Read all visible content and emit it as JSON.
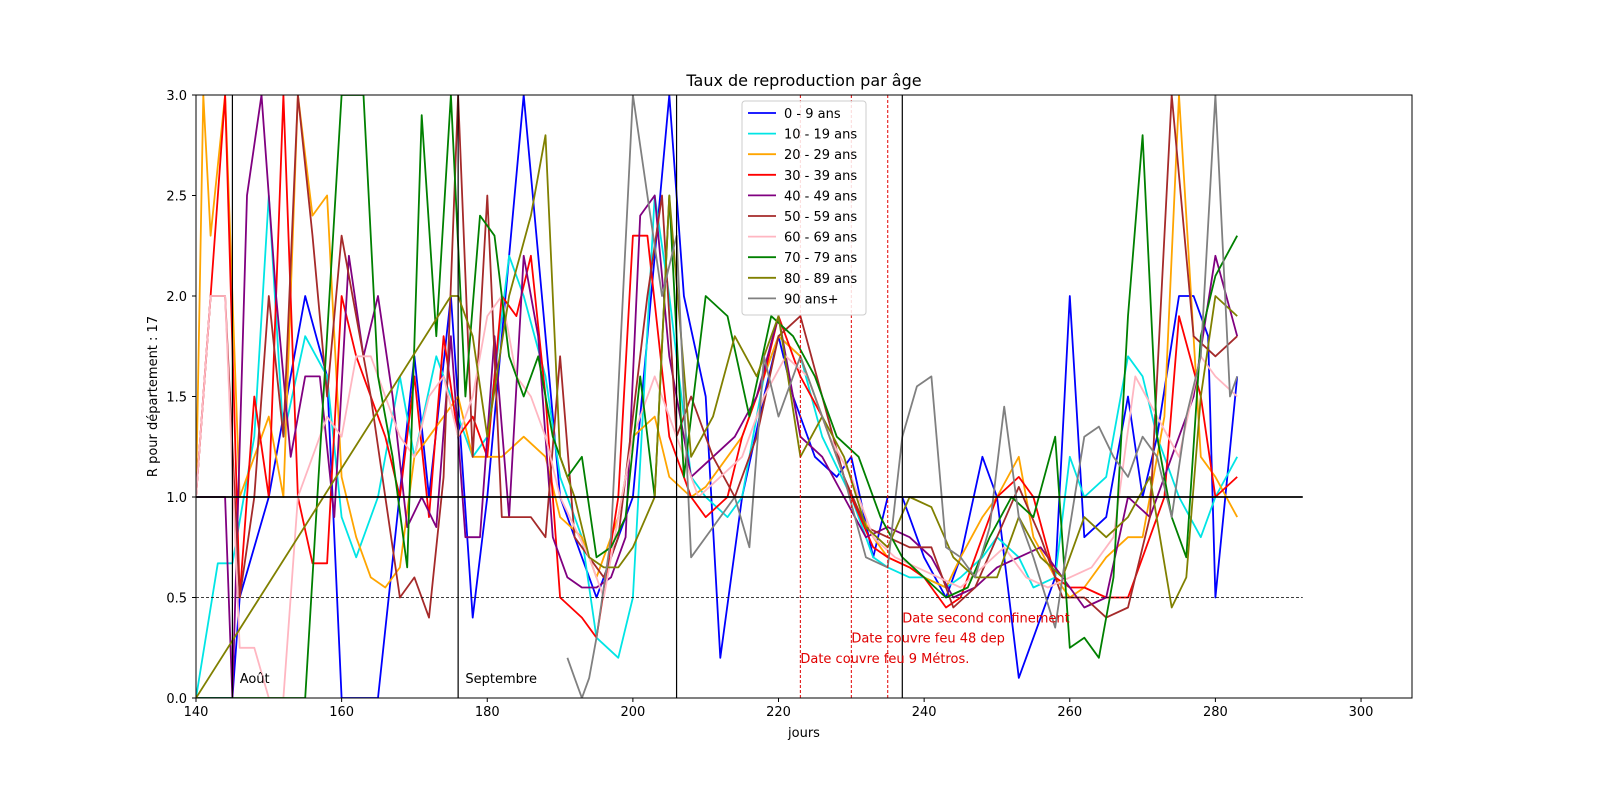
{
  "chart_data": {
    "type": "line",
    "title": "Taux de reproduction par âge",
    "xlabel": "jours",
    "ylabel": "R pour département : 17",
    "xlim": [
      140,
      307
    ],
    "ylim": [
      0,
      3
    ],
    "xticks": [
      140,
      160,
      180,
      200,
      220,
      240,
      260,
      280,
      300
    ],
    "yticks": [
      0.0,
      0.5,
      1.0,
      1.5,
      2.0,
      2.5,
      3.0
    ],
    "xtick_labels": [
      "140",
      "160",
      "180",
      "200",
      "220",
      "240",
      "260",
      "280",
      "300"
    ],
    "ytick_labels": [
      "0.0",
      "0.5",
      "1.0",
      "1.5",
      "2.0",
      "2.5",
      "3.0"
    ],
    "grid": false,
    "legend_position": "top-center",
    "reference_lines": {
      "horizontal_solid": {
        "y": 1.0,
        "x_range": [
          140,
          292
        ]
      },
      "horizontal_dashed": {
        "y": 0.5,
        "x_range": [
          140,
          292
        ]
      },
      "month_lines": [
        145,
        176,
        206,
        237
      ],
      "event_lines": [
        223,
        230,
        235
      ]
    },
    "annotations": {
      "month_labels": [
        {
          "x": 146,
          "y": 0.1,
          "text": "Août"
        },
        {
          "x": 177,
          "y": 0.1,
          "text": "Septembre"
        }
      ],
      "event_labels": [
        {
          "x": 237,
          "y": 0.4,
          "text": "Date second confinement"
        },
        {
          "x": 230,
          "y": 0.3,
          "text": "Date couvre feu 48 dep"
        },
        {
          "x": 223,
          "y": 0.2,
          "text": "Date couvre feu 9 Métros."
        }
      ]
    },
    "colors": {
      "reference": "#000000",
      "event": "#e00000"
    },
    "series": [
      {
        "name": " 0 - 9 ans",
        "color": "#0000ff",
        "x": [
          140,
          145,
          146,
          150,
          155,
          158,
          160,
          165,
          170,
          172,
          175,
          178,
          180,
          185,
          190,
          195,
          200,
          205,
          207,
          210,
          212,
          215,
          218,
          220,
          222,
          225,
          228,
          230,
          233,
          235,
          237,
          240,
          243,
          245,
          248,
          250,
          253,
          255,
          258,
          260,
          262,
          265,
          268,
          270,
          272,
          275,
          277,
          279,
          280,
          283
        ],
        "y": [
          0,
          0,
          0.5,
          1.0,
          2.0,
          1.6,
          0,
          0,
          1.7,
          1.0,
          2.0,
          0.4,
          1.0,
          3.0,
          1.0,
          0.5,
          1.0,
          3.0,
          2.0,
          1.5,
          0.2,
          1.0,
          1.5,
          1.8,
          1.5,
          1.2,
          1.1,
          1.2,
          0.7,
          1.0,
          1.0,
          0.7,
          0.5,
          0.7,
          1.2,
          1.0,
          0.1,
          0.3,
          0.6,
          2.0,
          0.8,
          0.9,
          1.5,
          1.0,
          1.3,
          2.0,
          2.0,
          1.8,
          0.5,
          1.6
        ]
      },
      {
        "name": "10 - 19 ans",
        "color": "#00e5e5",
        "x": [
          140,
          143,
          145,
          148,
          150,
          152,
          155,
          158,
          160,
          162,
          165,
          168,
          170,
          173,
          175,
          178,
          180,
          183,
          185,
          188,
          190,
          193,
          195,
          198,
          200,
          203,
          205,
          208,
          210,
          213,
          215,
          218,
          220,
          223,
          226,
          230,
          233,
          235,
          238,
          240,
          243,
          245,
          248,
          250,
          253,
          255,
          258,
          260,
          262,
          265,
          268,
          270,
          272,
          275,
          278,
          280,
          283
        ],
        "y": [
          0,
          0.67,
          0.67,
          1.3,
          2.5,
          1.3,
          1.8,
          1.6,
          0.9,
          0.7,
          1.0,
          1.6,
          1.2,
          1.7,
          1.5,
          1.2,
          1.3,
          2.2,
          2.0,
          1.6,
          1.1,
          0.8,
          0.3,
          0.2,
          0.5,
          2.5,
          2.0,
          1.1,
          1.0,
          0.9,
          1.0,
          1.6,
          1.8,
          1.7,
          1.3,
          1.0,
          0.7,
          0.65,
          0.6,
          0.6,
          0.55,
          0.6,
          0.7,
          0.8,
          0.7,
          0.55,
          0.6,
          1.2,
          1.0,
          1.1,
          1.7,
          1.6,
          1.3,
          1.0,
          0.8,
          1.0,
          1.2
        ]
      },
      {
        "name": "20 - 29 ans",
        "color": "#ffa500",
        "x": [
          140,
          141,
          142,
          144,
          146,
          148,
          150,
          152,
          154,
          156,
          158,
          160,
          162,
          164,
          166,
          168,
          170,
          172,
          174,
          176,
          178,
          180,
          182,
          185,
          188,
          190,
          193,
          195,
          198,
          200,
          203,
          205,
          208,
          210,
          213,
          215,
          218,
          220,
          223,
          226,
          230,
          233,
          235,
          238,
          240,
          243,
          245,
          248,
          250,
          253,
          255,
          258,
          260,
          262,
          265,
          268,
          270,
          273,
          275,
          278,
          280,
          283
        ],
        "y": [
          1.0,
          3.0,
          2.3,
          3.0,
          1.0,
          1.2,
          1.4,
          1.0,
          3.0,
          2.4,
          2.5,
          1.1,
          0.8,
          0.6,
          0.55,
          0.65,
          1.2,
          1.3,
          1.4,
          1.5,
          1.2,
          1.2,
          1.2,
          1.3,
          1.2,
          0.9,
          0.8,
          0.6,
          0.9,
          1.3,
          1.4,
          1.1,
          1.0,
          1.05,
          1.2,
          1.3,
          1.6,
          1.8,
          1.7,
          1.4,
          1.0,
          0.8,
          0.7,
          0.65,
          0.6,
          0.55,
          0.7,
          0.9,
          1.0,
          1.2,
          0.8,
          0.6,
          0.5,
          0.55,
          0.7,
          0.8,
          0.8,
          1.4,
          3.0,
          1.2,
          1.1,
          0.9
        ]
      },
      {
        "name": "30 - 39 ans",
        "color": "#ff0000",
        "x": [
          140,
          142,
          144,
          146,
          148,
          150,
          152,
          154,
          156,
          158,
          160,
          162,
          164,
          166,
          168,
          170,
          172,
          174,
          176,
          178,
          180,
          182,
          184,
          186,
          188,
          190,
          193,
          195,
          198,
          200,
          202,
          205,
          208,
          210,
          213,
          215,
          218,
          220,
          223,
          226,
          230,
          233,
          235,
          238,
          240,
          243,
          245,
          248,
          250,
          253,
          255,
          258,
          260,
          262,
          265,
          268,
          270,
          273,
          275,
          278,
          280,
          283
        ],
        "y": [
          1.0,
          2.0,
          3.0,
          0.5,
          1.5,
          1.0,
          3.0,
          1.0,
          0.67,
          0.67,
          2.0,
          1.7,
          1.5,
          1.3,
          1.0,
          1.6,
          0.9,
          1.8,
          1.3,
          1.4,
          1.2,
          2.0,
          1.9,
          2.2,
          1.5,
          0.5,
          0.4,
          0.3,
          1.0,
          2.3,
          2.3,
          1.3,
          1.0,
          0.9,
          1.0,
          1.3,
          1.6,
          1.9,
          1.6,
          1.4,
          1.0,
          0.75,
          0.7,
          0.65,
          0.6,
          0.45,
          0.5,
          0.8,
          1.0,
          1.1,
          1.0,
          0.6,
          0.55,
          0.55,
          0.5,
          0.5,
          0.7,
          1.0,
          1.9,
          1.5,
          1.0,
          1.1
        ]
      },
      {
        "name": "40 - 49 ans",
        "color": "#800080",
        "x": [
          140,
          144,
          145,
          147,
          149,
          151,
          153,
          155,
          157,
          159,
          161,
          163,
          165,
          167,
          169,
          171,
          173,
          175,
          177,
          179,
          181,
          183,
          185,
          187,
          189,
          191,
          193,
          195,
          197,
          199,
          201,
          203,
          205,
          208,
          211,
          214,
          217,
          220,
          223,
          226,
          229,
          232,
          235,
          238,
          241,
          244,
          247,
          250,
          253,
          256,
          259,
          262,
          265,
          268,
          271,
          274,
          277,
          280,
          283
        ],
        "y": [
          1.0,
          1.0,
          0.0,
          2.5,
          3.0,
          2.0,
          1.2,
          1.6,
          1.6,
          0.9,
          2.2,
          1.7,
          2.0,
          1.5,
          0.85,
          1.0,
          0.85,
          1.8,
          0.8,
          0.8,
          1.8,
          0.9,
          2.2,
          1.8,
          0.8,
          0.6,
          0.55,
          0.55,
          0.6,
          0.8,
          2.4,
          2.5,
          1.7,
          1.1,
          1.2,
          1.3,
          1.5,
          1.9,
          1.3,
          1.2,
          1.0,
          0.8,
          0.85,
          0.8,
          0.7,
          0.5,
          0.55,
          0.65,
          0.7,
          0.75,
          0.6,
          0.45,
          0.5,
          1.0,
          0.9,
          1.2,
          1.5,
          2.2,
          1.8
        ]
      },
      {
        "name": "50 - 59 ans",
        "color": "#a52a2a",
        "x": [
          140,
          142,
          144,
          146,
          148,
          150,
          152,
          154,
          156,
          158,
          160,
          162,
          164,
          166,
          168,
          170,
          172,
          174,
          176,
          178,
          180,
          182,
          184,
          186,
          188,
          190,
          192,
          194,
          196,
          198,
          200,
          202,
          204,
          206,
          208,
          211,
          214,
          217,
          220,
          223,
          226,
          229,
          232,
          235,
          238,
          241,
          244,
          247,
          250,
          253,
          256,
          259,
          262,
          265,
          268,
          271,
          274,
          277,
          280,
          283
        ],
        "y": [
          1.0,
          2.0,
          2.0,
          0.5,
          1.0,
          2.0,
          1.3,
          3.0,
          2.3,
          1.5,
          2.3,
          1.9,
          1.5,
          1.0,
          0.5,
          0.6,
          0.4,
          1.1,
          3.0,
          1.2,
          2.5,
          0.9,
          0.9,
          0.9,
          0.8,
          1.7,
          0.8,
          0.7,
          0.6,
          0.8,
          1.4,
          2.0,
          2.5,
          1.3,
          1.5,
          1.2,
          1.0,
          1.3,
          1.8,
          1.9,
          1.5,
          1.1,
          0.85,
          0.8,
          0.75,
          0.75,
          0.45,
          0.55,
          0.8,
          1.05,
          0.8,
          0.5,
          0.5,
          0.4,
          0.45,
          0.9,
          3.0,
          1.8,
          1.7,
          1.8
        ]
      },
      {
        "name": "60 - 69 ans",
        "color": "#ffb6c1",
        "x": [
          140,
          142,
          144,
          146,
          148,
          150,
          152,
          154,
          156,
          158,
          160,
          162,
          164,
          166,
          168,
          170,
          172,
          174,
          176,
          178,
          180,
          182,
          184,
          186,
          188,
          190,
          192,
          194,
          196,
          198,
          200,
          203,
          206,
          209,
          212,
          215,
          218,
          221,
          224,
          227,
          230,
          233,
          236,
          239,
          242,
          245,
          248,
          251,
          254,
          257,
          260,
          263,
          266,
          269,
          272,
          275,
          278,
          280,
          283
        ],
        "y": [
          1.0,
          2.0,
          2.0,
          0.25,
          0.25,
          0.0,
          0.0,
          1.0,
          1.2,
          1.4,
          1.3,
          1.7,
          1.7,
          1.5,
          1.3,
          1.2,
          1.5,
          1.6,
          1.3,
          1.5,
          1.9,
          2.0,
          1.6,
          1.5,
          1.3,
          1.0,
          0.85,
          0.7,
          0.5,
          0.9,
          1.3,
          1.6,
          1.3,
          1.0,
          1.1,
          1.2,
          1.5,
          1.7,
          1.6,
          1.3,
          1.1,
          0.8,
          0.7,
          0.65,
          0.6,
          0.55,
          0.65,
          0.75,
          0.6,
          0.55,
          0.6,
          0.65,
          0.8,
          1.6,
          1.4,
          1.2,
          1.7,
          1.6,
          1.5
        ]
      },
      {
        "name": "70 - 79 ans",
        "color": "#008000",
        "x": [
          140,
          145,
          150,
          155,
          160,
          163,
          165,
          167,
          169,
          171,
          173,
          175,
          177,
          179,
          181,
          183,
          185,
          187,
          189,
          191,
          193,
          195,
          197,
          199,
          201,
          203,
          205,
          207,
          210,
          213,
          216,
          219,
          222,
          225,
          228,
          231,
          234,
          237,
          240,
          243,
          246,
          249,
          252,
          255,
          258,
          260,
          262,
          264,
          266,
          268,
          270,
          272,
          274,
          276,
          278,
          280,
          283
        ],
        "y": [
          0,
          0,
          0,
          0,
          3.0,
          3.0,
          1.6,
          1.2,
          0.65,
          2.9,
          1.8,
          3.0,
          1.5,
          2.4,
          2.3,
          1.7,
          1.5,
          1.7,
          1.3,
          1.1,
          1.2,
          0.7,
          0.75,
          0.9,
          1.6,
          1.0,
          2.5,
          1.1,
          2.0,
          1.9,
          1.4,
          1.9,
          1.8,
          1.6,
          1.3,
          1.2,
          0.9,
          0.7,
          0.6,
          0.5,
          0.55,
          0.8,
          1.0,
          0.9,
          1.3,
          0.25,
          0.3,
          0.2,
          0.6,
          1.9,
          2.8,
          1.3,
          0.9,
          0.7,
          1.8,
          2.1,
          2.3
        ]
      },
      {
        "name": "80 - 89 ans",
        "color": "#808000",
        "x": [
          140,
          175,
          176,
          178,
          180,
          183,
          186,
          188,
          190,
          192,
          194,
          196,
          198,
          200,
          203,
          205,
          208,
          211,
          214,
          217,
          220,
          223,
          226,
          229,
          232,
          235,
          238,
          241,
          244,
          247,
          250,
          253,
          256,
          259,
          262,
          265,
          268,
          271,
          274,
          276,
          278,
          280,
          283
        ],
        "y": [
          0,
          2.0,
          2.0,
          1.8,
          1.3,
          2.0,
          2.4,
          2.8,
          1.2,
          1.0,
          0.7,
          0.65,
          0.65,
          0.75,
          1.0,
          2.5,
          1.2,
          1.4,
          1.8,
          1.6,
          1.9,
          1.2,
          1.4,
          1.2,
          0.85,
          0.75,
          1.0,
          0.95,
          0.7,
          0.6,
          0.6,
          0.9,
          0.7,
          0.6,
          0.9,
          0.8,
          0.9,
          1.1,
          0.45,
          0.6,
          1.5,
          2.0,
          1.9
        ]
      },
      {
        "name": "90 ans+",
        "color": "#808080",
        "x": [
          191,
          192,
          193,
          194,
          195,
          197,
          200,
          202,
          204,
          206,
          208,
          211,
          214,
          216,
          218,
          220,
          223,
          226,
          229,
          232,
          235,
          237,
          239,
          241,
          243,
          245,
          247,
          249,
          251,
          253,
          255,
          258,
          260,
          262,
          264,
          266,
          268,
          270,
          272,
          274,
          276,
          278,
          280,
          282,
          283
        ],
        "y": [
          0.2,
          0.1,
          0.0,
          0.1,
          0.3,
          0.8,
          3.0,
          2.5,
          2.0,
          2.3,
          0.7,
          0.85,
          1.0,
          0.75,
          1.7,
          1.4,
          1.7,
          1.4,
          1.1,
          0.7,
          0.65,
          1.3,
          1.55,
          1.6,
          0.75,
          0.7,
          0.6,
          0.85,
          1.45,
          0.9,
          0.7,
          0.35,
          0.85,
          1.3,
          1.35,
          1.2,
          1.1,
          1.3,
          1.2,
          0.9,
          1.4,
          1.7,
          3.0,
          1.5,
          1.6
        ]
      }
    ]
  }
}
